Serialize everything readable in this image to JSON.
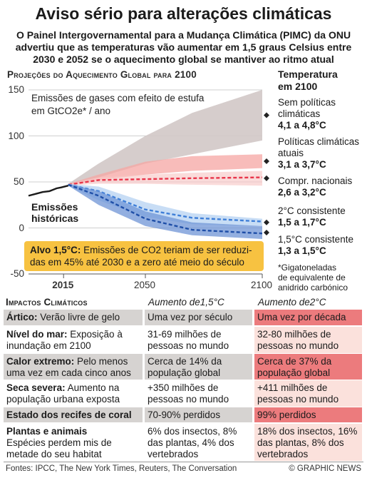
{
  "header": {
    "title": "Aviso sério para alterações climáticas",
    "subtitle_lines": [
      "O Painel Intergovernamental para a Mudança Climática (PIMC) da ONU",
      "advertiu que as temperaturas vão aumentar em 1,5 graus Celsius entre",
      "2030 e 2052 se o aquecimento global se mantiver ao ritmo atual"
    ]
  },
  "chart_title": "Projeções do Aquecimento Global para 2100",
  "emissions_note": [
    "Emissões de gases com efeito de estufa",
    "em GtCO2e* / ano"
  ],
  "historic_label": [
    "Emissões",
    "históricas"
  ],
  "target_box": {
    "lead": "Alvo 1,5°C:",
    "line1_rest": " Emissões de CO2 teriam de ser reduzi-",
    "line2": "das em 45% até 2030 e a zero até meio do século"
  },
  "temperature_header": [
    "Temperatura",
    "em 2100"
  ],
  "scenarios": [
    {
      "name_lines": [
        "Sem políticas",
        "climáticas"
      ],
      "range": "4,1 a 4,8°C",
      "color": "#b8b0ad"
    },
    {
      "name_lines": [
        "Políticas climáticas",
        "atuais"
      ],
      "range": "3,1 a 3,7°C",
      "color": "#f08a8a"
    },
    {
      "name_lines": [
        "Compr. nacionais"
      ],
      "range": "2,6 a 3,2°C",
      "color": "#e8354a"
    },
    {
      "name_lines": [
        "2°C consistente"
      ],
      "range": "1,5 a 1,7°C",
      "color": "#a9c8ee"
    },
    {
      "name_lines": [
        "1,5°C consistente"
      ],
      "range": "1,3 a 1,5°C",
      "color": "#3f6fc8"
    }
  ],
  "footnote": [
    "*Gigatoneladas",
    "de equivalente de",
    "anidrido carbónico"
  ],
  "chart_data": {
    "type": "area",
    "ylabel": "GtCO2e / ano",
    "xlim": [
      2000,
      2100
    ],
    "ylim": [
      -50,
      150
    ],
    "yticks": [
      150,
      100,
      50,
      0,
      -50
    ],
    "xticks": [
      2015,
      2050,
      2100
    ],
    "historic": {
      "x": [
        2000,
        2003,
        2006,
        2009,
        2010,
        2012,
        2014,
        2017
      ],
      "y": [
        35,
        37,
        39,
        40,
        41,
        43,
        44,
        46
      ]
    },
    "series": [
      {
        "name": "Sem políticas climáticas",
        "x": [
          2017,
          2030,
          2050,
          2070,
          2100
        ],
        "low": [
          46,
          55,
          70,
          80,
          95
        ],
        "high": [
          48,
          70,
          100,
          125,
          150
        ]
      },
      {
        "name": "Políticas climáticas atuais",
        "x": [
          2017,
          2030,
          2050,
          2070,
          2100
        ],
        "low": [
          46,
          52,
          58,
          62,
          65
        ],
        "high": [
          48,
          58,
          72,
          78,
          80
        ],
        "median": [
          47,
          55,
          63,
          66,
          70
        ]
      },
      {
        "name": "Compr. nacionais",
        "x": [
          2017,
          2030,
          2050,
          2070,
          2100
        ],
        "low": [
          46,
          48,
          48,
          47,
          46
        ],
        "high": [
          48,
          55,
          58,
          60,
          62
        ],
        "median": [
          47,
          52,
          53,
          54,
          55
        ]
      },
      {
        "name": "2°C consistente",
        "x": [
          2017,
          2030,
          2050,
          2070,
          2100
        ],
        "low": [
          46,
          30,
          12,
          4,
          2
        ],
        "high": [
          48,
          45,
          28,
          16,
          10
        ],
        "median": [
          47,
          40,
          20,
          11,
          7
        ]
      },
      {
        "name": "1,5°C consistente",
        "x": [
          2017,
          2030,
          2050,
          2070,
          2100
        ],
        "low": [
          46,
          25,
          2,
          -8,
          -12
        ],
        "high": [
          48,
          40,
          18,
          6,
          2
        ],
        "median": [
          47,
          35,
          10,
          -2,
          -6
        ]
      }
    ]
  },
  "impacts": {
    "title": "Impactos Climáticos",
    "col1": "Aumento de1,5°C",
    "col2": "Aumento de2°C",
    "rows": [
      {
        "key": "Ártico:",
        "desc": " Verão livre de gelo",
        "v15": "Uma vez por século",
        "v2": "Uma vez por década"
      },
      {
        "key": "Nível do mar:",
        "desc": " Exposição à inundação em 2100",
        "v15": "31-69 milhões de pessoas no mundo",
        "v2": "32-80 milhões de pessoas no mundo"
      },
      {
        "key": "Calor extremo:",
        "desc": " Pelo menos uma vez em cada cinco anos",
        "v15": "Cerca de 14% da população global",
        "v2": "Cerca de 37% da população global"
      },
      {
        "key": "Seca severa:",
        "desc": " Aumento na população urbana exposta",
        "v15": "+350 milhões de pessoas no mundo",
        "v2": "+411 milhões de pessoas no mundo"
      },
      {
        "key": "Estado dos recifes de coral",
        "desc": "",
        "v15": "70-90% perdidos",
        "v2": "99% perdidos"
      },
      {
        "key": "Plantas e animais",
        "desc": "Espécies perdem mis de metade do seu habitat",
        "v15": "6% dos insectos, 8% das plantas, 4% dos vertebrados",
        "v2": "18% dos insectos, 16% das plantas, 8% dos vertebrados"
      }
    ]
  },
  "sources": "Fontes: IPCC, The New York Times, Reuters, The Conversation",
  "credit": "© GRAPHIC NEWS"
}
